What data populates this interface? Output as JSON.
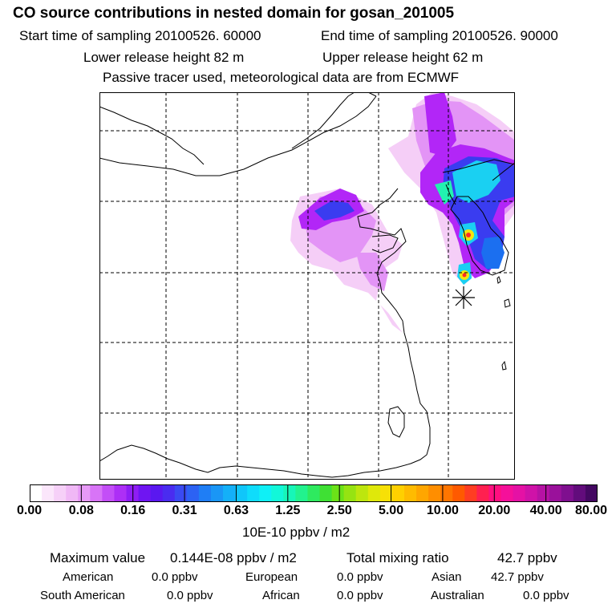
{
  "header": {
    "title": "CO  source contributions in nested domain for gosan_201005",
    "start_time": "Start time of sampling 20100526. 60000",
    "end_time": "End time of sampling 20100526. 90000",
    "lower_height": "Lower release height   82 m",
    "upper_height": "Upper release height   62 m",
    "note": "Passive tracer used, meteorological data are from ECMWF"
  },
  "colorbar": {
    "ticks": [
      "0.00",
      "0.08",
      "0.16",
      "0.31",
      "0.63",
      "1.25",
      "2.50",
      "5.00",
      "10.00",
      "20.00",
      "40.00",
      "80.00"
    ],
    "colors": [
      "#ffffff",
      "#fbe6fb",
      "#f6d0f8",
      "#f0b8f6",
      "#e79af7",
      "#d874f7",
      "#c34ef7",
      "#ad2ff6",
      "#8f1df5",
      "#6f15f2",
      "#5a18f0",
      "#4a2cf0",
      "#3a4af2",
      "#2c62f3",
      "#1f7ef5",
      "#1a96f6",
      "#14b0f8",
      "#10c6fa",
      "#0fdcfb",
      "#0ff0f6",
      "#12f7d9",
      "#17f6b8",
      "#22f28e",
      "#2eea5f",
      "#3fe034",
      "#6be218",
      "#96e312",
      "#bde60e",
      "#dfe80a",
      "#f7e006",
      "#ffd000",
      "#ffbb00",
      "#ffa600",
      "#ff8e00",
      "#ff7500",
      "#ff5a00",
      "#ff3d22",
      "#ff2050",
      "#ff0f80",
      "#f5109a",
      "#e511a5",
      "#cf12a8",
      "#b612a4",
      "#9a119b",
      "#7f0f8f",
      "#620c7c",
      "#440862"
    ],
    "unit": "10E-10 ppbv / m2"
  },
  "stats": {
    "max_label": "Maximum value",
    "max_value": "0.144E-08 ppbv / m2",
    "total_label": "Total mixing ratio",
    "total_value": "42.7 ppbv"
  },
  "sources": [
    {
      "name": "American",
      "value": "0.0 ppbv"
    },
    {
      "name": "European",
      "value": "0.0 ppbv"
    },
    {
      "name": "Asian",
      "value": "42.7 ppbv"
    },
    {
      "name": "South American",
      "value": "0.0 ppbv"
    },
    {
      "name": "African",
      "value": "0.0 ppbv"
    },
    {
      "name": "Australian",
      "value": "0.0 ppbv"
    }
  ],
  "map": {
    "receptor_marker": "asterisk",
    "plume_colors": {
      "faint": "#f3c6f6",
      "light": "#e394f6",
      "violet": "#b226f7",
      "blue": "#3a3cf0",
      "cyan": "#1ad0f2",
      "aqua": "#22f2b0",
      "yellow": "#f4e60c",
      "red": "#ff2a2a",
      "deepblue": "#1b6ff0"
    }
  }
}
